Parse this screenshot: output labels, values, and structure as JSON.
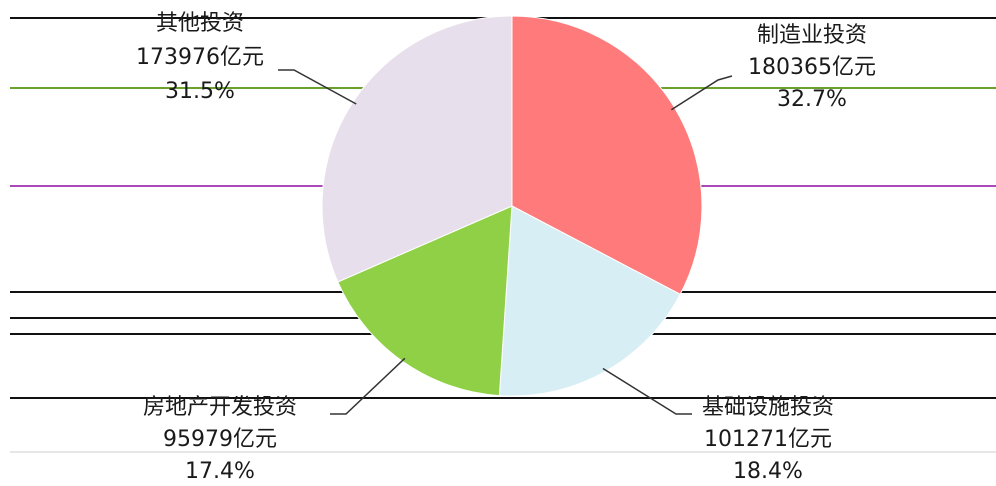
{
  "chart_data": {
    "type": "pie",
    "slices": [
      {
        "label": "制造业投资",
        "value": 180365,
        "value_text": "180365亿元",
        "percent": 32.7,
        "percent_text": "32.7%",
        "color": "#ff7a7a"
      },
      {
        "label": "基础设施投资",
        "value": 101271,
        "value_text": "101271亿元",
        "percent": 18.4,
        "percent_text": "18.4%",
        "color": "#d8eef5"
      },
      {
        "label": "房地产开发投资",
        "value": 95979,
        "value_text": "95979亿元",
        "percent": 17.4,
        "percent_text": "17.4%",
        "color": "#8fd046"
      },
      {
        "label": "其他投资",
        "value": 173976,
        "value_text": "173976亿元",
        "percent": 31.5,
        "percent_text": "31.5%",
        "color": "#e8dfec"
      }
    ]
  }
}
